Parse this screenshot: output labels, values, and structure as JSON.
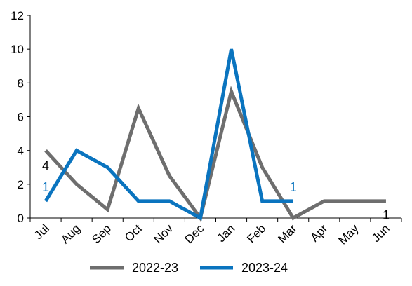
{
  "chart_data": {
    "type": "line",
    "title": "",
    "xlabel": "",
    "ylabel": "",
    "categories": [
      "Jul",
      "Aug",
      "Sep",
      "Oct",
      "Nov",
      "Dec",
      "Jan",
      "Feb",
      "Mar",
      "Apr",
      "May",
      "Jun"
    ],
    "ylim": [
      0,
      12
    ],
    "yticks": [
      "0",
      "2",
      "4",
      "6",
      "8",
      "10",
      "12"
    ],
    "grid": false,
    "legend_position": "bottom",
    "series": [
      {
        "name": "2022-23",
        "color": "#6e6e6e",
        "values": [
          4,
          2,
          0.5,
          6.5,
          2.5,
          0,
          7.5,
          3,
          0,
          1,
          1,
          1
        ]
      },
      {
        "name": "2023-24",
        "color": "#0a74bf",
        "values": [
          1,
          4,
          3,
          1,
          1,
          0,
          10,
          1,
          1,
          null,
          null,
          null
        ]
      }
    ],
    "annotations": [
      {
        "series": 0,
        "category": "Jul",
        "text": "4",
        "color": "#000000"
      },
      {
        "series": 0,
        "category": "Jun",
        "text": "1",
        "color": "#000000"
      },
      {
        "series": 1,
        "category": "Jul",
        "text": "1",
        "color": "#0a74bf"
      },
      {
        "series": 1,
        "category": "Mar",
        "text": "1",
        "color": "#0a74bf"
      }
    ]
  }
}
